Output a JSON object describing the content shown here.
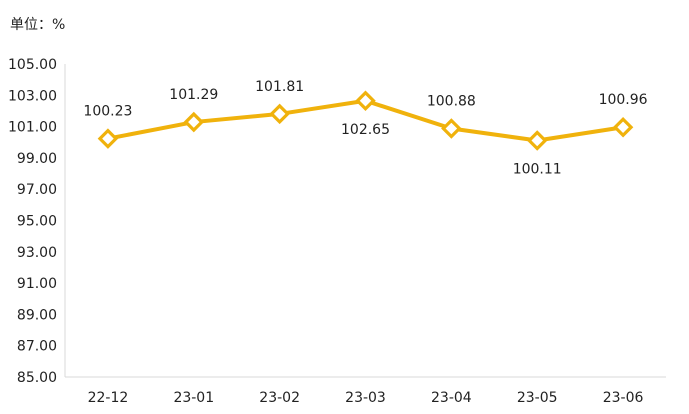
{
  "unit_label": "单位：%",
  "chart_data": {
    "type": "line",
    "categories": [
      "22-12",
      "23-01",
      "23-02",
      "23-03",
      "23-04",
      "23-05",
      "23-06"
    ],
    "series": [
      {
        "values": [
          100.23,
          101.29,
          101.81,
          102.65,
          100.88,
          100.11,
          100.96
        ],
        "color": "#F0B20C",
        "marker": "diamond-hollow"
      }
    ],
    "data_labels": [
      "100.23",
      "101.29",
      "101.81",
      "102.65",
      "100.88",
      "100.11",
      "100.96"
    ],
    "data_label_positions": [
      "above",
      "above",
      "above",
      "below",
      "above",
      "below",
      "above"
    ],
    "y_ticks": [
      "85.00",
      "87.00",
      "89.00",
      "91.00",
      "93.00",
      "95.00",
      "97.00",
      "99.00",
      "101.00",
      "103.00",
      "105.00"
    ],
    "ylim": [
      85,
      105
    ],
    "grid": false,
    "title": "",
    "xlabel": "",
    "ylabel": ""
  }
}
